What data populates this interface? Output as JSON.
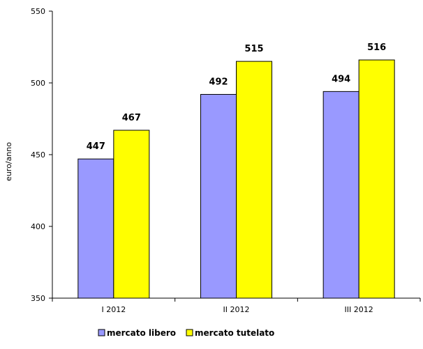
{
  "chart_data": {
    "type": "bar",
    "categories": [
      "I 2012",
      "II 2012",
      "III 2012"
    ],
    "series": [
      {
        "name": "mercato libero",
        "values": [
          447,
          492,
          494
        ],
        "color": "#9999ff"
      },
      {
        "name": "mercato tutelato",
        "values": [
          467,
          515,
          516
        ],
        "color": "#ffff00"
      }
    ],
    "data_labels": [
      [
        "447",
        "492",
        "494"
      ],
      [
        "467",
        "515",
        "516"
      ]
    ],
    "title": "",
    "xlabel": "",
    "ylabel": "euro/anno",
    "ylim": [
      350,
      550
    ],
    "yticks": [
      "350",
      "400",
      "450",
      "500",
      "550"
    ],
    "grid": false,
    "legend_position": "bottom"
  }
}
